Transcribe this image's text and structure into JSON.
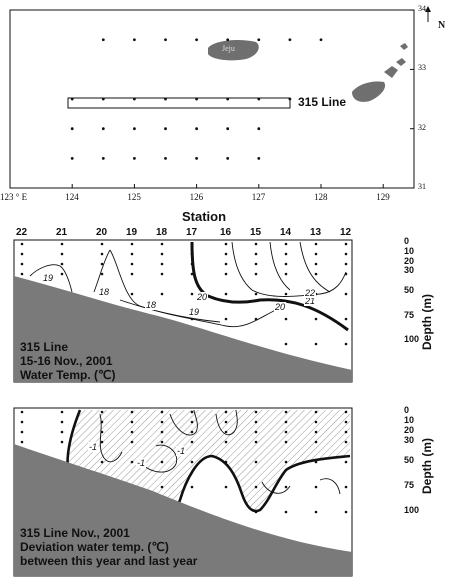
{
  "map": {
    "lon_labels": [
      "123 ° E",
      "124",
      "125",
      "126",
      "127",
      "128",
      "129"
    ],
    "lat_labels": [
      "34",
      "33",
      "32",
      "31"
    ],
    "north_label": "N",
    "island_label": "Jeju",
    "line_label": "315 Line",
    "station_grid_rows": [
      {
        "lat": 33.5,
        "lons": [
          124.5,
          125,
          125.5,
          126,
          126.5,
          127,
          127.5,
          128
        ]
      },
      {
        "lat": 32.5,
        "lons": [
          124,
          124.5,
          125,
          125.5,
          126,
          126.5,
          127,
          127.5
        ]
      },
      {
        "lat": 32.0,
        "lons": [
          124,
          124.5,
          125,
          125.5,
          126,
          126.5,
          127
        ]
      },
      {
        "lat": 31.5,
        "lons": [
          124,
          124.5,
          125,
          125.5,
          126,
          126.5,
          127
        ]
      }
    ]
  },
  "section_common": {
    "station_header": "Station",
    "stations": [
      "22",
      "21",
      "20",
      "19",
      "18",
      "17",
      "16",
      "15",
      "14",
      "13",
      "12"
    ],
    "depth_ticks": [
      "0",
      "10",
      "20",
      "30",
      "50",
      "75",
      "100"
    ],
    "depth_axis_label": "Depth (m)"
  },
  "panel1": {
    "caption": [
      "315 Line",
      "15-16 Nov., 2001",
      "Water Temp. (℃)"
    ],
    "contour_labels": [
      "19",
      "18",
      "18",
      "19",
      "20",
      "20",
      "21",
      "22"
    ]
  },
  "panel2": {
    "caption": [
      "315 Line Nov., 2001",
      "Deviation water temp. (℃)",
      "between this year and last year"
    ],
    "contour_labels": [
      "-1",
      "-1",
      "-1"
    ]
  },
  "colors": {
    "seabed": "#7a7a7a",
    "land": "#6f6f6f",
    "hatch": "#9a9a9a",
    "ink": "#111111"
  }
}
